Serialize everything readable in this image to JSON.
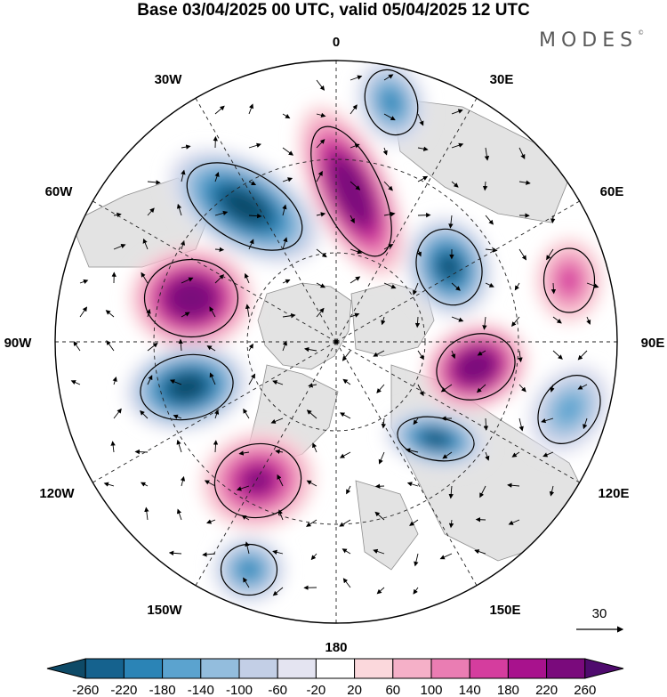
{
  "header": {
    "title": "Base 03/04/2025 00 UTC, valid 05/04/2025 12 UTC",
    "brand": "MODES",
    "brand_mark": "©"
  },
  "map": {
    "projection": "north-polar-stereographic",
    "longitude_labels": {
      "lon_0": "0",
      "lon_30e": "30E",
      "lon_60e": "60E",
      "lon_90e": "90E",
      "lon_120e": "120E",
      "lon_150e": "150E",
      "lon_180": "180",
      "lon_150w": "150W",
      "lon_120w": "120W",
      "lon_90w": "90W",
      "lon_60w": "60W",
      "lon_30w": "30W"
    },
    "reference_vector_label": "30",
    "anomaly_centers": [
      {
        "id": "a1",
        "sign": "negative",
        "peak": -260
      },
      {
        "id": "a2",
        "sign": "positive",
        "peak": 260
      },
      {
        "id": "a3",
        "sign": "positive",
        "peak": 260
      },
      {
        "id": "a4",
        "sign": "negative",
        "peak": -260
      },
      {
        "id": "a5",
        "sign": "negative",
        "peak": -240
      },
      {
        "id": "a6",
        "sign": "positive",
        "peak": 260
      },
      {
        "id": "a7",
        "sign": "negative",
        "peak": -240
      },
      {
        "id": "a8",
        "sign": "positive",
        "peak": 180
      },
      {
        "id": "a9",
        "sign": "negative",
        "peak": -160
      },
      {
        "id": "a10",
        "sign": "negative",
        "peak": -140
      },
      {
        "id": "a11",
        "sign": "positive",
        "peak": 100
      },
      {
        "id": "a12",
        "sign": "negative",
        "peak": -100
      }
    ]
  },
  "colorbar": {
    "tick_labels": [
      "-260",
      "-220",
      "-180",
      "-140",
      "-100",
      "-60",
      "-20",
      "20",
      "60",
      "100",
      "140",
      "180",
      "220",
      "260"
    ],
    "colors": [
      "#0e4a67",
      "#15628e",
      "#2b84b6",
      "#5ba3cf",
      "#93bddd",
      "#c3cfe6",
      "#e4e4f1",
      "#ffffff",
      "#fbd8dc",
      "#f5b0c8",
      "#ea7db3",
      "#d53d9e",
      "#a8128d",
      "#7a0a7c",
      "#4f0b6e"
    ]
  }
}
